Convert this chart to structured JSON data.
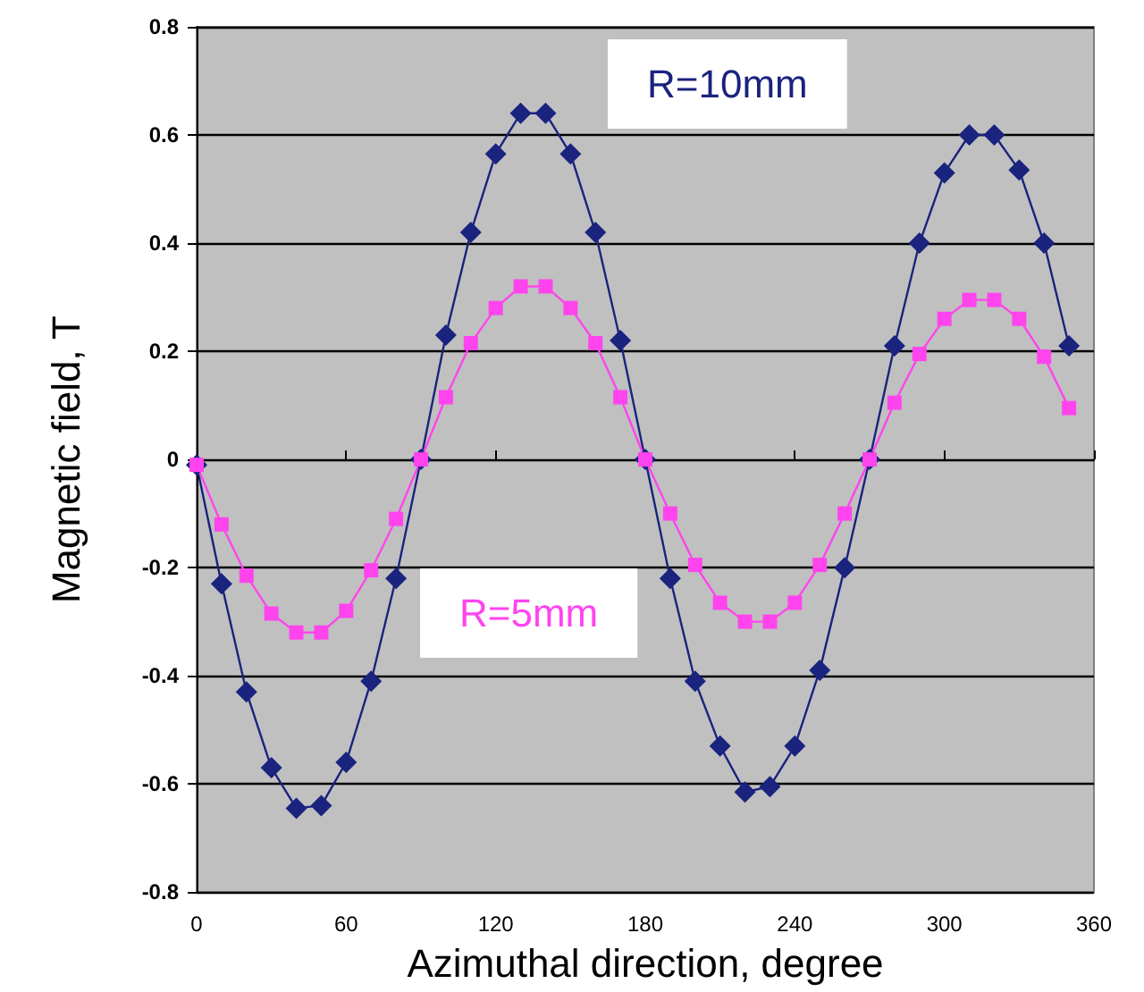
{
  "chart_data": {
    "type": "line",
    "xlabel": "Azimuthal direction, degree",
    "ylabel": "Magnetic field, T",
    "x": [
      0,
      10,
      20,
      30,
      40,
      50,
      60,
      70,
      80,
      90,
      100,
      110,
      120,
      130,
      140,
      150,
      160,
      170,
      180,
      190,
      200,
      210,
      220,
      230,
      240,
      250,
      260,
      270,
      280,
      290,
      300,
      310,
      320,
      330,
      340,
      350
    ],
    "series": [
      {
        "name": "R=10mm",
        "color": "#1a237e",
        "marker": "diamond",
        "values": [
          -0.01,
          -0.23,
          -0.43,
          -0.57,
          -0.645,
          -0.64,
          -0.56,
          -0.41,
          -0.22,
          0.0,
          0.23,
          0.42,
          0.565,
          0.64,
          0.64,
          0.565,
          0.42,
          0.22,
          0.0,
          -0.22,
          -0.41,
          -0.53,
          -0.615,
          -0.605,
          -0.53,
          -0.39,
          -0.2,
          0.0,
          0.21,
          0.4,
          0.53,
          0.6,
          0.6,
          0.535,
          0.4,
          0.21
        ]
      },
      {
        "name": "R=5mm",
        "color": "#ff44ee",
        "marker": "square",
        "values": [
          -0.01,
          -0.12,
          -0.215,
          -0.285,
          -0.32,
          -0.32,
          -0.28,
          -0.205,
          -0.11,
          0.0,
          0.115,
          0.215,
          0.28,
          0.32,
          0.32,
          0.28,
          0.215,
          0.115,
          0.0,
          -0.1,
          -0.195,
          -0.265,
          -0.3,
          -0.3,
          -0.265,
          -0.195,
          -0.1,
          0.0,
          0.105,
          0.195,
          0.26,
          0.295,
          0.295,
          0.26,
          0.19,
          0.095
        ]
      }
    ],
    "xlim": [
      0,
      360
    ],
    "xticks": [
      0,
      60,
      120,
      180,
      240,
      300,
      360
    ],
    "ylim": [
      -0.8,
      0.8
    ],
    "yticks": [
      -0.8,
      -0.6,
      -0.4,
      -0.2,
      0,
      0.2,
      0.4,
      0.6,
      0.8
    ],
    "grid": "y",
    "legend": false
  }
}
